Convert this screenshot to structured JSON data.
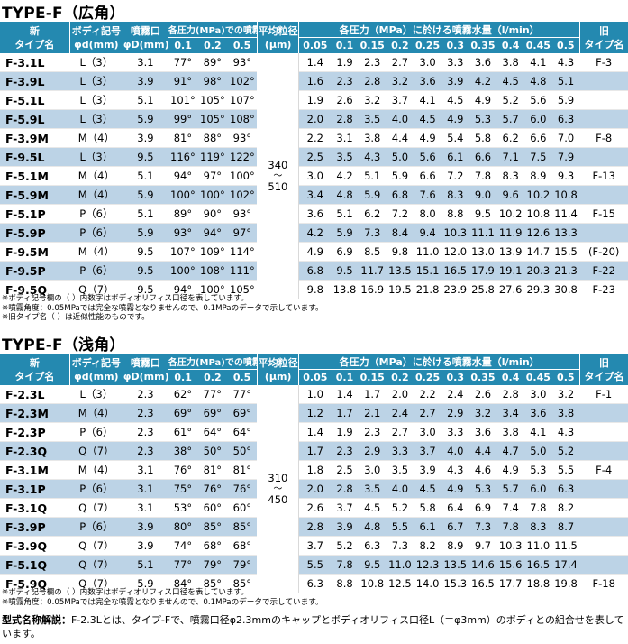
{
  "colors": {
    "header_bg": "#2489b0",
    "alt_row_bg": "#bcd3e6",
    "text": "#000000"
  },
  "headers": {
    "new_type": [
      "新",
      "タイプ名"
    ],
    "body_code": [
      "ボディ記号",
      "φd(mm)"
    ],
    "nozzle": [
      "噴霧口",
      "φD(mm)"
    ],
    "angle_group": "各圧力(MPa)での噴霧角度",
    "angle_pressures": [
      "0.1",
      "0.2",
      "0.5"
    ],
    "avg_size": [
      "平均粒径",
      "(μm)"
    ],
    "flow_group": "各圧力（MPa）に於ける噴霧水量（l/min）",
    "flow_pressures": [
      "0.05",
      "0.1",
      "0.15",
      "0.2",
      "0.25",
      "0.3",
      "0.35",
      "0.4",
      "0.45",
      "0.5"
    ],
    "old_type": [
      "旧",
      "タイプ名"
    ]
  },
  "sections": [
    {
      "title": "TYPE-F（広角）",
      "avg_size": [
        "340",
        "〜",
        "510"
      ],
      "rows": [
        {
          "model": "F-3.1L",
          "body": "L（3）",
          "nozzle": "3.1",
          "angles": [
            "77°",
            "89°",
            "93°"
          ],
          "flow": [
            "1.4",
            "1.9",
            "2.3",
            "2.7",
            "3.0",
            "3.3",
            "3.6",
            "3.8",
            "4.1",
            "4.3"
          ],
          "old": "F-3"
        },
        {
          "model": "F-3.9L",
          "body": "L（3）",
          "nozzle": "3.9",
          "angles": [
            "91°",
            "98°",
            "102°"
          ],
          "flow": [
            "1.6",
            "2.3",
            "2.8",
            "3.2",
            "3.6",
            "3.9",
            "4.2",
            "4.5",
            "4.8",
            "5.1"
          ],
          "old": ""
        },
        {
          "model": "F-5.1L",
          "body": "L（3）",
          "nozzle": "5.1",
          "angles": [
            "101°",
            "105°",
            "107°"
          ],
          "flow": [
            "1.9",
            "2.6",
            "3.2",
            "3.7",
            "4.1",
            "4.5",
            "4.9",
            "5.2",
            "5.6",
            "5.9"
          ],
          "old": ""
        },
        {
          "model": "F-5.9L",
          "body": "L（3）",
          "nozzle": "5.9",
          "angles": [
            "99°",
            "105°",
            "108°"
          ],
          "flow": [
            "2.0",
            "2.8",
            "3.5",
            "4.0",
            "4.5",
            "4.9",
            "5.3",
            "5.7",
            "6.0",
            "6.3"
          ],
          "old": ""
        },
        {
          "model": "F-3.9M",
          "body": "M（4）",
          "nozzle": "3.9",
          "angles": [
            "81°",
            "88°",
            "93°"
          ],
          "flow": [
            "2.2",
            "3.1",
            "3.8",
            "4.4",
            "4.9",
            "5.4",
            "5.8",
            "6.2",
            "6.6",
            "7.0"
          ],
          "old": "F-8"
        },
        {
          "model": "F-9.5L",
          "body": "L（3）",
          "nozzle": "9.5",
          "angles": [
            "116°",
            "119°",
            "122°"
          ],
          "flow": [
            "2.5",
            "3.5",
            "4.3",
            "5.0",
            "5.6",
            "6.1",
            "6.6",
            "7.1",
            "7.5",
            "7.9"
          ],
          "old": ""
        },
        {
          "model": "F-5.1M",
          "body": "M（4）",
          "nozzle": "5.1",
          "angles": [
            "94°",
            "97°",
            "100°"
          ],
          "flow": [
            "3.0",
            "4.2",
            "5.1",
            "5.9",
            "6.6",
            "7.2",
            "7.8",
            "8.3",
            "8.9",
            "9.3"
          ],
          "old": "F-13"
        },
        {
          "model": "F-5.9M",
          "body": "M（4）",
          "nozzle": "5.9",
          "angles": [
            "100°",
            "100°",
            "102°"
          ],
          "flow": [
            "3.4",
            "4.8",
            "5.9",
            "6.8",
            "7.6",
            "8.3",
            "9.0",
            "9.6",
            "10.2",
            "10.8"
          ],
          "old": ""
        },
        {
          "model": "F-5.1P",
          "body": "P（6）",
          "nozzle": "5.1",
          "angles": [
            "89°",
            "90°",
            "93°"
          ],
          "flow": [
            "3.6",
            "5.1",
            "6.2",
            "7.2",
            "8.0",
            "8.8",
            "9.5",
            "10.2",
            "10.8",
            "11.4"
          ],
          "old": "F-15"
        },
        {
          "model": "F-5.9P",
          "body": "P（6）",
          "nozzle": "5.9",
          "angles": [
            "93°",
            "94°",
            "97°"
          ],
          "flow": [
            "4.2",
            "5.9",
            "7.3",
            "8.4",
            "9.4",
            "10.3",
            "11.1",
            "11.9",
            "12.6",
            "13.3"
          ],
          "old": ""
        },
        {
          "model": "F-9.5M",
          "body": "M（4）",
          "nozzle": "9.5",
          "angles": [
            "107°",
            "109°",
            "114°"
          ],
          "flow": [
            "4.9",
            "6.9",
            "8.5",
            "9.8",
            "11.0",
            "12.0",
            "13.0",
            "13.9",
            "14.7",
            "15.5"
          ],
          "old": "(F-20)"
        },
        {
          "model": "F-9.5P",
          "body": "P（6）",
          "nozzle": "9.5",
          "angles": [
            "100°",
            "108°",
            "111°"
          ],
          "flow": [
            "6.8",
            "9.5",
            "11.7",
            "13.5",
            "15.1",
            "16.5",
            "17.9",
            "19.1",
            "20.3",
            "21.3"
          ],
          "old": "F-22"
        },
        {
          "model": "F-9.5Q",
          "body": "Q（7）",
          "nozzle": "9.5",
          "angles": [
            "94°",
            "100°",
            "105°"
          ],
          "flow": [
            "9.8",
            "13.8",
            "16.9",
            "19.5",
            "21.8",
            "23.9",
            "25.8",
            "27.6",
            "29.3",
            "30.8"
          ],
          "old": "F-23"
        }
      ],
      "notes": [
        "※ボディ記号欄の（ ）内数字はボディオリフィス口径を表しています。",
        "※噴霧角度：0.05MPaでは完全な噴霧となりませんので、0.1MPaのデータで示しています。",
        "※旧タイプ名（ ）は近似性能のものです。"
      ]
    },
    {
      "title": "TYPE-F（浅角）",
      "avg_size": [
        "310",
        "〜",
        "450"
      ],
      "rows": [
        {
          "model": "F-2.3L",
          "body": "L（3）",
          "nozzle": "2.3",
          "angles": [
            "62°",
            "77°",
            "77°"
          ],
          "flow": [
            "1.0",
            "1.4",
            "1.7",
            "2.0",
            "2.2",
            "2.4",
            "2.6",
            "2.8",
            "3.0",
            "3.2"
          ],
          "old": "F-1"
        },
        {
          "model": "F-2.3M",
          "body": "M（4）",
          "nozzle": "2.3",
          "angles": [
            "69°",
            "69°",
            "69°"
          ],
          "flow": [
            "1.2",
            "1.7",
            "2.1",
            "2.4",
            "2.7",
            "2.9",
            "3.2",
            "3.4",
            "3.6",
            "3.8"
          ],
          "old": ""
        },
        {
          "model": "F-2.3P",
          "body": "P（6）",
          "nozzle": "2.3",
          "angles": [
            "61°",
            "64°",
            "64°"
          ],
          "flow": [
            "1.4",
            "1.9",
            "2.3",
            "2.7",
            "3.0",
            "3.3",
            "3.6",
            "3.8",
            "4.1",
            "4.3"
          ],
          "old": ""
        },
        {
          "model": "F-2.3Q",
          "body": "Q（7）",
          "nozzle": "2.3",
          "angles": [
            "38°",
            "50°",
            "50°"
          ],
          "flow": [
            "1.7",
            "2.3",
            "2.9",
            "3.3",
            "3.7",
            "4.0",
            "4.4",
            "4.7",
            "5.0",
            "5.2"
          ],
          "old": ""
        },
        {
          "model": "F-3.1M",
          "body": "M（4）",
          "nozzle": "3.1",
          "angles": [
            "76°",
            "81°",
            "81°"
          ],
          "flow": [
            "1.8",
            "2.5",
            "3.0",
            "3.5",
            "3.9",
            "4.3",
            "4.6",
            "4.9",
            "5.3",
            "5.5"
          ],
          "old": "F-4"
        },
        {
          "model": "F-3.1P",
          "body": "P（6）",
          "nozzle": "3.1",
          "angles": [
            "75°",
            "76°",
            "76°"
          ],
          "flow": [
            "2.0",
            "2.8",
            "3.5",
            "4.0",
            "4.5",
            "4.9",
            "5.3",
            "5.7",
            "6.0",
            "6.3"
          ],
          "old": ""
        },
        {
          "model": "F-3.1Q",
          "body": "Q（7）",
          "nozzle": "3.1",
          "angles": [
            "53°",
            "60°",
            "60°"
          ],
          "flow": [
            "2.6",
            "3.7",
            "4.5",
            "5.2",
            "5.8",
            "6.4",
            "6.9",
            "7.4",
            "7.8",
            "8.2"
          ],
          "old": ""
        },
        {
          "model": "F-3.9P",
          "body": "P（6）",
          "nozzle": "3.9",
          "angles": [
            "80°",
            "85°",
            "85°"
          ],
          "flow": [
            "2.8",
            "3.9",
            "4.8",
            "5.5",
            "6.1",
            "6.7",
            "7.3",
            "7.8",
            "8.3",
            "8.7"
          ],
          "old": ""
        },
        {
          "model": "F-3.9Q",
          "body": "Q（7）",
          "nozzle": "3.9",
          "angles": [
            "74°",
            "68°",
            "68°"
          ],
          "flow": [
            "3.7",
            "5.2",
            "6.3",
            "7.3",
            "8.2",
            "8.9",
            "9.7",
            "10.3",
            "11.0",
            "11.5"
          ],
          "old": ""
        },
        {
          "model": "F-5.1Q",
          "body": "Q（7）",
          "nozzle": "5.1",
          "angles": [
            "77°",
            "79°",
            "79°"
          ],
          "flow": [
            "5.5",
            "7.8",
            "9.5",
            "11.0",
            "12.3",
            "13.5",
            "14.6",
            "15.6",
            "16.5",
            "17.4"
          ],
          "old": ""
        },
        {
          "model": "F-5.9Q",
          "body": "Q（7）",
          "nozzle": "5.9",
          "angles": [
            "84°",
            "85°",
            "85°"
          ],
          "flow": [
            "6.3",
            "8.8",
            "10.8",
            "12.5",
            "14.0",
            "15.3",
            "16.5",
            "17.7",
            "18.8",
            "19.8"
          ],
          "old": "F-18"
        }
      ],
      "notes": [
        "※ボディ記号欄の（ ）内数字はボディオリフィス口径を表しています。",
        "※噴霧角度：0.05MPaでは完全な噴霧となりませんので、0.1MPaのデータで示しています。"
      ]
    }
  ],
  "model_explanation": {
    "label": "型式名称解説：",
    "text": "F-2.3Lとは、タイプ-Fで、噴霧口径φ2.3mmのキャップとボディオリフィス口径L（＝φ3mm）のボディとの組合せを表しています。"
  }
}
